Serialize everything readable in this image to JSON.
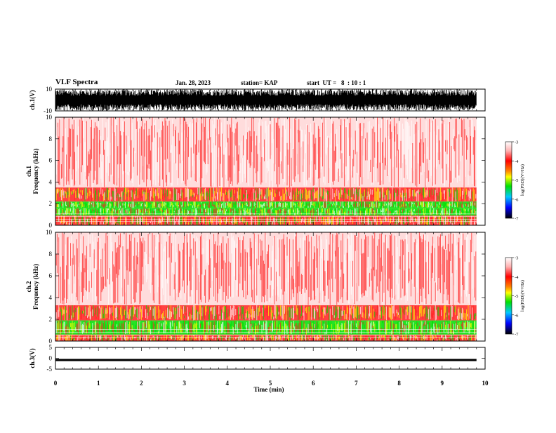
{
  "header": {
    "title": "VLF Spectra",
    "date": "Jan. 28, 2023",
    "station": "station= KAP",
    "start": "start  UT =   8  : 10 : 1"
  },
  "chart_data": [
    {
      "type": "line",
      "panel": "ch1-waveform",
      "ylabel": "ch.1(V)",
      "ylim": [
        -10,
        10
      ],
      "y_tick_labels": [
        "10",
        "-10"
      ],
      "xlim": [
        0,
        10
      ],
      "description_level": "dense saturated waveform filling most of range",
      "color": "#000000"
    },
    {
      "type": "heatmap",
      "panel": "ch1-spectrogram",
      "ylabel": "ch.1\nFrequency (kHz)",
      "ylim": [
        0,
        10
      ],
      "y_tick_labels": [
        "0",
        "2",
        "4",
        "6",
        "8",
        "10"
      ],
      "xlim": [
        0,
        10
      ],
      "data_end_min": 9.8,
      "bands": [
        {
          "f_low": 0.0,
          "f_high": 0.9,
          "level": -4.2
        },
        {
          "f_low": 0.9,
          "f_high": 1.6,
          "level": -5.0
        },
        {
          "f_low": 1.6,
          "f_high": 2.2,
          "level": -4.8
        },
        {
          "f_low": 2.2,
          "f_high": 3.5,
          "level": -4.1
        },
        {
          "f_low": 3.5,
          "f_high": 10.0,
          "level": -3.5
        }
      ],
      "colorbar": {
        "label": "log(PSD)(V²/Hz)",
        "range": [
          -7,
          -3
        ],
        "tick_labels": [
          "-3",
          "-4",
          "-5",
          "-6",
          "-7"
        ]
      }
    },
    {
      "type": "heatmap",
      "panel": "ch2-spectrogram",
      "ylabel": "ch.2\nFrequency (kHz)",
      "ylim": [
        0,
        10
      ],
      "y_tick_labels": [
        "0",
        "2",
        "4",
        "6",
        "8",
        "10"
      ],
      "xlim": [
        0,
        10
      ],
      "data_end_min": 9.8,
      "bands": [
        {
          "f_low": 0.0,
          "f_high": 0.6,
          "level": -4.3
        },
        {
          "f_low": 0.6,
          "f_high": 1.9,
          "level": -5.2
        },
        {
          "f_low": 1.9,
          "f_high": 3.3,
          "level": -4.1
        },
        {
          "f_low": 3.3,
          "f_high": 10.0,
          "level": -3.6
        }
      ],
      "colorbar": {
        "label": "log(PSD)(V²/Hz)",
        "range": [
          -7,
          -3
        ],
        "tick_labels": [
          "-3",
          "-4",
          "-5",
          "-6",
          "-7"
        ]
      }
    },
    {
      "type": "line",
      "panel": "ch3-waveform",
      "ylabel": "ch.3(V)",
      "ylim": [
        -5,
        5
      ],
      "y_tick_labels": [
        "5",
        "0",
        "-5"
      ],
      "xlim": [
        0,
        10
      ],
      "band": [
        -1.3,
        -0.3
      ],
      "color": "#000000"
    }
  ],
  "x_axis": {
    "label": "Time (min)",
    "tick_labels": [
      "0",
      "1",
      "2",
      "3",
      "4",
      "5",
      "6",
      "7",
      "8",
      "9",
      "10"
    ]
  },
  "colors": {
    "high": "#ffffff",
    "red": "#ff2020",
    "yellow": "#ffff00",
    "green": "#00dd00",
    "cyan": "#00c8ff",
    "blue": "#0000ff",
    "low": "#000000"
  }
}
